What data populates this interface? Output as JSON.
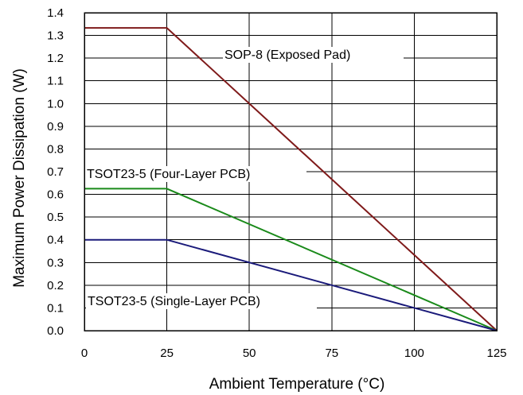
{
  "chart_data": {
    "type": "line",
    "xlabel": "Ambient Temperature (°C)",
    "ylabel": "Maximum Power Dissipation (W)",
    "xlim": [
      0,
      125
    ],
    "ylim": [
      0,
      1.4
    ],
    "xticks": [
      "0",
      "25",
      "50",
      "75",
      "100",
      "125"
    ],
    "yticks": [
      "0.0",
      "0.1",
      "0.2",
      "0.3",
      "0.4",
      "0.5",
      "0.6",
      "0.7",
      "0.8",
      "0.9",
      "1.0",
      "1.1",
      "1.2",
      "1.3",
      "1.4"
    ],
    "grid": true,
    "series": [
      {
        "name": "SOP-8 (Exposed Pad)",
        "color": "#7f1a1a",
        "x": [
          0,
          25,
          125
        ],
        "y": [
          1.333,
          1.333,
          0
        ]
      },
      {
        "name": "TSOT23-5 (Four-Layer PCB)",
        "color": "#1a8a1a",
        "x": [
          0,
          25,
          125
        ],
        "y": [
          0.625,
          0.625,
          0
        ]
      },
      {
        "name": "TSOT23-5 (Single-Layer PCB)",
        "color": "#1a1a7a",
        "x": [
          0,
          25,
          125
        ],
        "y": [
          0.4,
          0.4,
          0
        ]
      }
    ]
  }
}
